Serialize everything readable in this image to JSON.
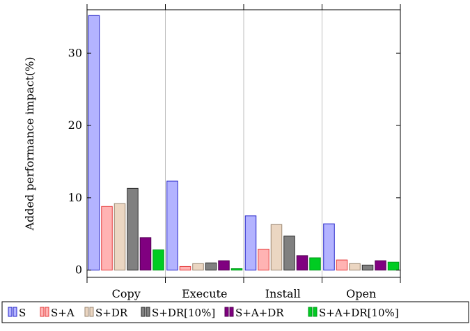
{
  "chart_data": {
    "type": "bar",
    "title": "",
    "xlabel": "",
    "ylabel": "Added performance impact(%)",
    "categories": [
      "Copy",
      "Execute",
      "Install",
      "Open"
    ],
    "ylim": [
      -1,
      36
    ],
    "yticks": [
      0,
      10,
      20,
      30
    ],
    "grid": "vertical",
    "legend_position": "bottom",
    "series": [
      {
        "name": "S",
        "color": "#b3b3ff",
        "stroke": "#2424c8",
        "values": [
          35.2,
          12.3,
          7.5,
          6.4
        ]
      },
      {
        "name": "S+A",
        "color": "#ffb3b3",
        "stroke": "#e53b3b",
        "values": [
          8.8,
          0.5,
          2.9,
          1.4
        ]
      },
      {
        "name": "S+DR",
        "color": "#ebd6c2",
        "stroke": "#9a8670",
        "values": [
          9.2,
          0.9,
          6.3,
          0.9
        ]
      },
      {
        "name": "S+DR[10%]",
        "color": "#808080",
        "stroke": "#2a2a2a",
        "values": [
          11.3,
          1.0,
          4.7,
          0.7
        ]
      },
      {
        "name": "S+A+DR",
        "color": "#800080",
        "stroke": "#500050",
        "values": [
          4.5,
          1.3,
          2.0,
          1.3
        ]
      },
      {
        "name": "S+A+DR[10%]",
        "color": "#00cc22",
        "stroke": "#009918",
        "values": [
          2.8,
          0.2,
          1.7,
          1.1
        ]
      }
    ]
  }
}
